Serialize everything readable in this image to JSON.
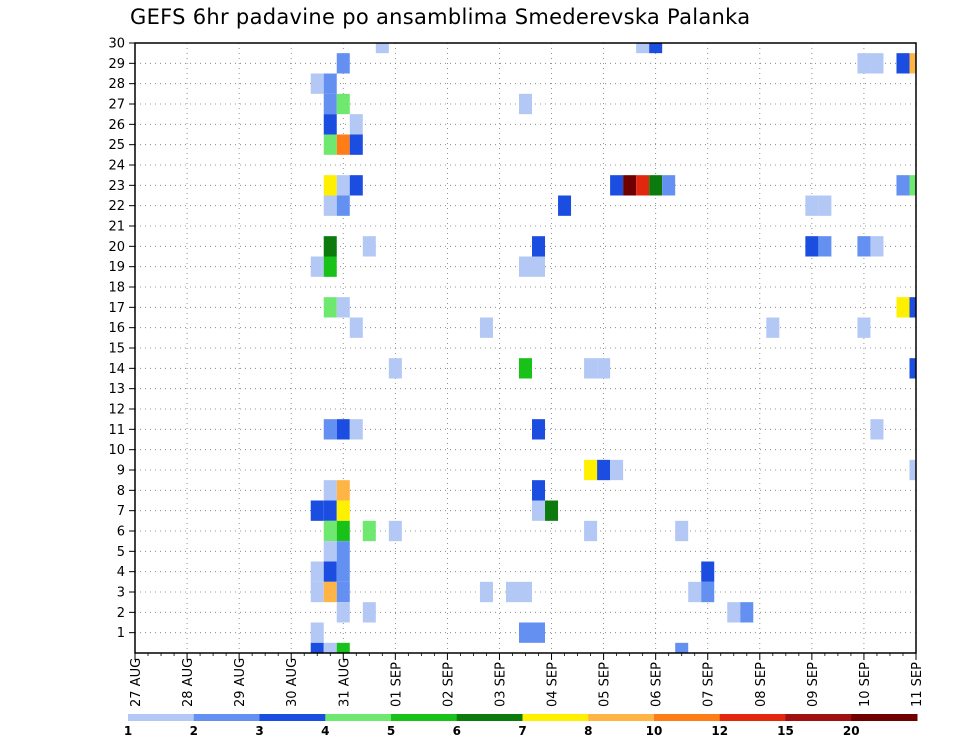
{
  "chart_data": {
    "type": "heatmap",
    "title": "GEFS 6hr padavine po ansamblima Smederevska Palanka",
    "xlabel": "",
    "ylabel": "",
    "x_ticks": [
      "27 AUG",
      "28 AUG",
      "29 AUG",
      "30 AUG",
      "31 AUG",
      "01 SEP",
      "02 SEP",
      "03 SEP",
      "04 SEP",
      "05 SEP",
      "06 SEP",
      "07 SEP",
      "08 SEP",
      "09 SEP",
      "10 SEP",
      "11 SEP"
    ],
    "x_unit": "6-hour step since 27 AUG 00Z",
    "y_ticks": [
      1,
      2,
      3,
      4,
      5,
      6,
      7,
      8,
      9,
      10,
      11,
      12,
      13,
      14,
      15,
      16,
      17,
      18,
      19,
      20,
      21,
      22,
      23,
      24,
      25,
      26,
      27,
      28,
      29,
      30
    ],
    "ylim": [
      0,
      30
    ],
    "xlim_steps": [
      0,
      60
    ],
    "grid": true,
    "legend": {
      "placement": "bottom",
      "colors": [
        "#b3c8f5",
        "#6490f2",
        "#1b4ee0",
        "#6fe86f",
        "#19c219",
        "#0c7a0c",
        "#fff000",
        "#ffb446",
        "#ff7d17",
        "#e1280f",
        "#a01010",
        "#6e0000"
      ],
      "labels": [
        "1",
        "2",
        "3",
        "4",
        "5",
        "6",
        "7",
        "8",
        "10",
        "12",
        "15",
        "20"
      ]
    },
    "cells": [
      {
        "member": 30,
        "step": 19,
        "value": 1
      },
      {
        "member": 30,
        "step": 39,
        "value": 1
      },
      {
        "member": 30,
        "step": 40,
        "value": 3
      },
      {
        "member": 29,
        "step": 16,
        "value": 2
      },
      {
        "member": 29,
        "step": 56,
        "value": 1
      },
      {
        "member": 29,
        "step": 57,
        "value": 1
      },
      {
        "member": 29,
        "step": 59,
        "value": 3
      },
      {
        "member": 29,
        "step": 60,
        "value": 8
      },
      {
        "member": 28,
        "step": 14,
        "value": 1
      },
      {
        "member": 28,
        "step": 15,
        "value": 2
      },
      {
        "member": 27,
        "step": 15,
        "value": 2
      },
      {
        "member": 27,
        "step": 16,
        "value": 4
      },
      {
        "member": 27,
        "step": 30,
        "value": 1
      },
      {
        "member": 26,
        "step": 15,
        "value": 3
      },
      {
        "member": 26,
        "step": 17,
        "value": 1
      },
      {
        "member": 25,
        "step": 15,
        "value": 4
      },
      {
        "member": 25,
        "step": 16,
        "value": 10
      },
      {
        "member": 25,
        "step": 17,
        "value": 3
      },
      {
        "member": 23,
        "step": 15,
        "value": 7
      },
      {
        "member": 23,
        "step": 16,
        "value": 1
      },
      {
        "member": 23,
        "step": 17,
        "value": 3
      },
      {
        "member": 23,
        "step": 37,
        "value": 3
      },
      {
        "member": 23,
        "step": 38,
        "value": 20
      },
      {
        "member": 23,
        "step": 39,
        "value": 12
      },
      {
        "member": 23,
        "step": 40,
        "value": 6
      },
      {
        "member": 23,
        "step": 41,
        "value": 2
      },
      {
        "member": 23,
        "step": 59,
        "value": 2
      },
      {
        "member": 23,
        "step": 60,
        "value": 4
      },
      {
        "member": 22,
        "step": 15,
        "value": 1
      },
      {
        "member": 22,
        "step": 16,
        "value": 2
      },
      {
        "member": 22,
        "step": 33,
        "value": 3
      },
      {
        "member": 22,
        "step": 52,
        "value": 1
      },
      {
        "member": 22,
        "step": 53,
        "value": 1
      },
      {
        "member": 20,
        "step": 15,
        "value": 6
      },
      {
        "member": 20,
        "step": 18,
        "value": 1
      },
      {
        "member": 20,
        "step": 31,
        "value": 3
      },
      {
        "member": 20,
        "step": 52,
        "value": 3
      },
      {
        "member": 20,
        "step": 53,
        "value": 2
      },
      {
        "member": 20,
        "step": 56,
        "value": 2
      },
      {
        "member": 20,
        "step": 57,
        "value": 1
      },
      {
        "member": 19,
        "step": 14,
        "value": 1
      },
      {
        "member": 19,
        "step": 15,
        "value": 5
      },
      {
        "member": 19,
        "step": 30,
        "value": 1
      },
      {
        "member": 19,
        "step": 31,
        "value": 1
      },
      {
        "member": 17,
        "step": 15,
        "value": 4
      },
      {
        "member": 17,
        "step": 16,
        "value": 1
      },
      {
        "member": 17,
        "step": 59,
        "value": 7
      },
      {
        "member": 17,
        "step": 60,
        "value": 3
      },
      {
        "member": 16,
        "step": 17,
        "value": 1
      },
      {
        "member": 16,
        "step": 27,
        "value": 1
      },
      {
        "member": 16,
        "step": 49,
        "value": 1
      },
      {
        "member": 16,
        "step": 56,
        "value": 1
      },
      {
        "member": 14,
        "step": 20,
        "value": 1
      },
      {
        "member": 14,
        "step": 30,
        "value": 5
      },
      {
        "member": 14,
        "step": 35,
        "value": 1
      },
      {
        "member": 14,
        "step": 36,
        "value": 1
      },
      {
        "member": 14,
        "step": 60,
        "value": 3
      },
      {
        "member": 11,
        "step": 15,
        "value": 2
      },
      {
        "member": 11,
        "step": 16,
        "value": 3
      },
      {
        "member": 11,
        "step": 17,
        "value": 1
      },
      {
        "member": 11,
        "step": 31,
        "value": 3
      },
      {
        "member": 11,
        "step": 57,
        "value": 1
      },
      {
        "member": 9,
        "step": 35,
        "value": 7
      },
      {
        "member": 9,
        "step": 36,
        "value": 3
      },
      {
        "member": 9,
        "step": 37,
        "value": 1
      },
      {
        "member": 9,
        "step": 60,
        "value": 1
      },
      {
        "member": 8,
        "step": 15,
        "value": 1
      },
      {
        "member": 8,
        "step": 16,
        "value": 8
      },
      {
        "member": 8,
        "step": 31,
        "value": 3
      },
      {
        "member": 7,
        "step": 14,
        "value": 3
      },
      {
        "member": 7,
        "step": 15,
        "value": 3
      },
      {
        "member": 7,
        "step": 16,
        "value": 7
      },
      {
        "member": 7,
        "step": 31,
        "value": 1
      },
      {
        "member": 7,
        "step": 32,
        "value": 6
      },
      {
        "member": 6,
        "step": 15,
        "value": 4
      },
      {
        "member": 6,
        "step": 16,
        "value": 5
      },
      {
        "member": 6,
        "step": 18,
        "value": 4
      },
      {
        "member": 6,
        "step": 20,
        "value": 1
      },
      {
        "member": 6,
        "step": 35,
        "value": 1
      },
      {
        "member": 6,
        "step": 42,
        "value": 1
      },
      {
        "member": 5,
        "step": 15,
        "value": 1
      },
      {
        "member": 5,
        "step": 16,
        "value": 2
      },
      {
        "member": 4,
        "step": 14,
        "value": 1
      },
      {
        "member": 4,
        "step": 15,
        "value": 3
      },
      {
        "member": 4,
        "step": 16,
        "value": 2
      },
      {
        "member": 4,
        "step": 44,
        "value": 3
      },
      {
        "member": 3,
        "step": 14,
        "value": 1
      },
      {
        "member": 3,
        "step": 15,
        "value": 8
      },
      {
        "member": 3,
        "step": 16,
        "value": 2
      },
      {
        "member": 3,
        "step": 27,
        "value": 1
      },
      {
        "member": 3,
        "step": 29,
        "value": 1
      },
      {
        "member": 3,
        "step": 30,
        "value": 1
      },
      {
        "member": 3,
        "step": 43,
        "value": 1
      },
      {
        "member": 3,
        "step": 44,
        "value": 2
      },
      {
        "member": 2,
        "step": 16,
        "value": 1
      },
      {
        "member": 2,
        "step": 18,
        "value": 1
      },
      {
        "member": 2,
        "step": 46,
        "value": 1
      },
      {
        "member": 2,
        "step": 47,
        "value": 2
      },
      {
        "member": 1,
        "step": 14,
        "value": 1
      },
      {
        "member": 1,
        "step": 30,
        "value": 2
      },
      {
        "member": 1,
        "step": 31,
        "value": 2
      },
      {
        "member": 0,
        "step": 14,
        "value": 3
      },
      {
        "member": 0,
        "step": 15,
        "value": 1
      },
      {
        "member": 0,
        "step": 16,
        "value": 5
      },
      {
        "member": 0,
        "step": 42,
        "value": 2
      }
    ]
  }
}
